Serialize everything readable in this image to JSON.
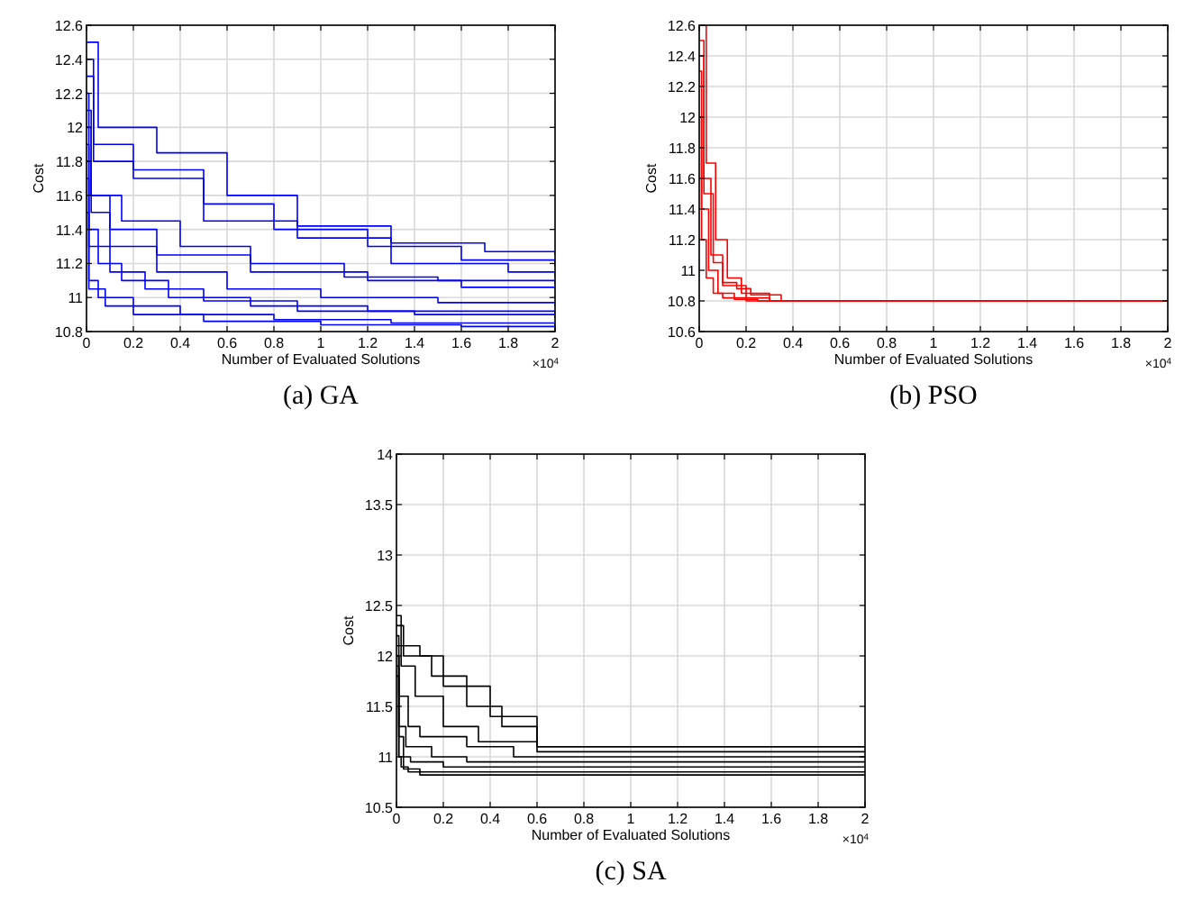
{
  "chart_data": [
    {
      "type": "step",
      "title": "(a) GA",
      "xlabel": "Number of Evaluated Solutions",
      "ylabel": "Cost",
      "xlim": [
        0,
        2
      ],
      "ylim": [
        10.8,
        12.6
      ],
      "xticks": [
        0,
        0.2,
        0.4,
        0.6,
        0.8,
        1,
        1.2,
        1.4,
        1.6,
        1.8,
        2
      ],
      "yticks": [
        10.8,
        11,
        11.2,
        11.4,
        11.6,
        11.8,
        12,
        12.2,
        12.4,
        12.6
      ],
      "grid": true,
      "annotations": [
        "×10$^{4}$"
      ],
      "series": [
        {
          "color": "#0000ff",
          "x": [
            0,
            0.05,
            0.3,
            0.6,
            0.9,
            1.3,
            1.7,
            2
          ],
          "values": [
            12.5,
            12.0,
            11.85,
            11.6,
            11.42,
            11.32,
            11.27,
            11.25
          ]
        },
        {
          "color": "#0000ff",
          "x": [
            0,
            0.03,
            0.2,
            0.5,
            0.8,
            1.2,
            1.6,
            2
          ],
          "values": [
            12.3,
            11.8,
            11.7,
            11.55,
            11.4,
            11.3,
            11.22,
            11.18
          ]
        },
        {
          "color": "#0000ff",
          "x": [
            0,
            0.02,
            0.15,
            0.4,
            0.7,
            1.1,
            1.5,
            2
          ],
          "values": [
            12.1,
            11.6,
            11.45,
            11.3,
            11.2,
            11.12,
            11.1,
            11.08
          ]
        },
        {
          "color": "#0000ff",
          "x": [
            0,
            0.02,
            0.1,
            0.3,
            0.6,
            1.0,
            1.5,
            2
          ],
          "values": [
            12.0,
            11.5,
            11.3,
            11.15,
            11.05,
            11.0,
            10.97,
            10.95
          ]
        },
        {
          "color": "#0000ff",
          "x": [
            0,
            0.01,
            0.1,
            0.25,
            0.5,
            0.9,
            1.4,
            2
          ],
          "values": [
            11.9,
            11.3,
            11.15,
            11.05,
            10.98,
            10.92,
            10.9,
            10.88
          ]
        },
        {
          "color": "#0000ff",
          "x": [
            0,
            0.01,
            0.05,
            0.2,
            0.4,
            0.8,
            1.3,
            2
          ],
          "values": [
            11.7,
            11.1,
            11.0,
            10.95,
            10.9,
            10.87,
            10.85,
            10.83
          ]
        },
        {
          "color": "#0000ff",
          "x": [
            0,
            0.01,
            0.05,
            0.15,
            0.35,
            0.7,
            1.2,
            2
          ],
          "values": [
            12.2,
            11.4,
            11.2,
            11.1,
            11.0,
            10.95,
            10.92,
            10.9
          ]
        },
        {
          "color": "#0000ff",
          "x": [
            0,
            0.02,
            0.1,
            0.3,
            0.7,
            1.2,
            1.6,
            2
          ],
          "values": [
            11.8,
            11.6,
            11.4,
            11.25,
            11.15,
            11.1,
            11.06,
            11.05
          ]
        },
        {
          "color": "#0000ff",
          "x": [
            0,
            0.03,
            0.2,
            0.5,
            0.9,
            1.3,
            1.8,
            2
          ],
          "values": [
            12.4,
            11.9,
            11.75,
            11.45,
            11.35,
            11.2,
            11.15,
            11.12
          ]
        },
        {
          "color": "#0000ff",
          "x": [
            0,
            0.01,
            0.08,
            0.2,
            0.5,
            1.0,
            1.6,
            2
          ],
          "values": [
            11.5,
            11.05,
            10.95,
            10.9,
            10.86,
            10.84,
            10.83,
            10.82
          ]
        }
      ]
    },
    {
      "type": "step",
      "title": "(b) PSO",
      "xlabel": "Number of Evaluated Solutions",
      "ylabel": "Cost",
      "xlim": [
        0,
        2
      ],
      "ylim": [
        10.6,
        12.6
      ],
      "xticks": [
        0,
        0.2,
        0.4,
        0.6,
        0.8,
        1,
        1.2,
        1.4,
        1.6,
        1.8,
        2
      ],
      "yticks": [
        10.6,
        10.8,
        11,
        11.2,
        11.4,
        11.6,
        11.8,
        12,
        12.2,
        12.4,
        12.6
      ],
      "grid": true,
      "annotations": [
        "×10$^{4}$"
      ],
      "series": [
        {
          "color": "#ff0000",
          "x": [
            0,
            0.02,
            0.05,
            0.1,
            0.2,
            0.3,
            2
          ],
          "values": [
            12.5,
            11.6,
            11.1,
            10.9,
            10.82,
            10.8,
            10.8
          ]
        },
        {
          "color": "#ff0000",
          "x": [
            0,
            0.01,
            0.04,
            0.08,
            0.15,
            0.25,
            2
          ],
          "values": [
            12.3,
            11.4,
            11.0,
            10.85,
            10.81,
            10.8,
            10.8
          ]
        },
        {
          "color": "#ff0000",
          "x": [
            0,
            0.03,
            0.07,
            0.12,
            0.18,
            0.3,
            2
          ],
          "values": [
            12.6,
            11.7,
            11.2,
            10.95,
            10.85,
            10.8,
            10.8
          ]
        },
        {
          "color": "#ff0000",
          "x": [
            0,
            0.01,
            0.03,
            0.06,
            0.1,
            0.2,
            2
          ],
          "values": [
            12.0,
            11.2,
            10.95,
            10.85,
            10.82,
            10.8,
            10.8
          ]
        },
        {
          "color": "#ff0000",
          "x": [
            0,
            0.02,
            0.06,
            0.1,
            0.16,
            0.22,
            0.35,
            2
          ],
          "values": [
            12.4,
            11.5,
            11.05,
            10.92,
            10.88,
            10.84,
            10.8,
            10.8
          ]
        }
      ]
    },
    {
      "type": "step",
      "title": "(c) SA",
      "xlabel": "Number of Evaluated Solutions",
      "ylabel": "Cost",
      "xlim": [
        0,
        2
      ],
      "ylim": [
        10.5,
        14
      ],
      "xticks": [
        0,
        0.2,
        0.4,
        0.6,
        0.8,
        1,
        1.2,
        1.4,
        1.6,
        1.8,
        2
      ],
      "yticks": [
        10.5,
        11,
        11.5,
        12,
        12.5,
        13,
        13.5,
        14
      ],
      "grid": true,
      "annotations": [
        "×10$^{4}$"
      ],
      "series": [
        {
          "color": "#000000",
          "x": [
            0,
            0.02,
            0.1,
            0.2,
            0.4,
            0.6,
            2
          ],
          "values": [
            12.4,
            12.1,
            12.0,
            11.7,
            11.4,
            11.1,
            11.1
          ]
        },
        {
          "color": "#000000",
          "x": [
            0,
            0.03,
            0.15,
            0.3,
            0.45,
            0.6,
            2
          ],
          "values": [
            12.3,
            12.0,
            11.8,
            11.5,
            11.3,
            11.05,
            11.05
          ]
        },
        {
          "color": "#000000",
          "x": [
            0,
            0.01,
            0.05,
            0.1,
            0.3,
            0.5,
            2
          ],
          "values": [
            12.2,
            11.6,
            11.3,
            11.2,
            11.1,
            11.0,
            11.0
          ]
        },
        {
          "color": "#000000",
          "x": [
            0,
            0.01,
            0.03,
            0.06,
            0.2,
            2
          ],
          "values": [
            12.0,
            11.2,
            11.0,
            10.95,
            10.9,
            10.9
          ]
        },
        {
          "color": "#000000",
          "x": [
            0,
            0.01,
            0.02,
            0.05,
            0.1,
            2
          ],
          "values": [
            11.8,
            11.0,
            10.9,
            10.85,
            10.82,
            10.82
          ]
        },
        {
          "color": "#000000",
          "x": [
            0,
            0.02,
            0.08,
            0.2,
            0.35,
            0.6,
            2
          ],
          "values": [
            12.1,
            11.9,
            11.6,
            11.3,
            11.15,
            11.1,
            11.1
          ]
        },
        {
          "color": "#000000",
          "x": [
            0,
            0.01,
            0.04,
            0.15,
            0.3,
            2
          ],
          "values": [
            12.0,
            11.3,
            11.1,
            11.0,
            10.95,
            10.95
          ]
        },
        {
          "color": "#000000",
          "x": [
            0,
            0.01,
            0.03,
            0.1,
            2
          ],
          "values": [
            11.9,
            11.0,
            10.88,
            10.85,
            10.85
          ]
        }
      ]
    }
  ]
}
